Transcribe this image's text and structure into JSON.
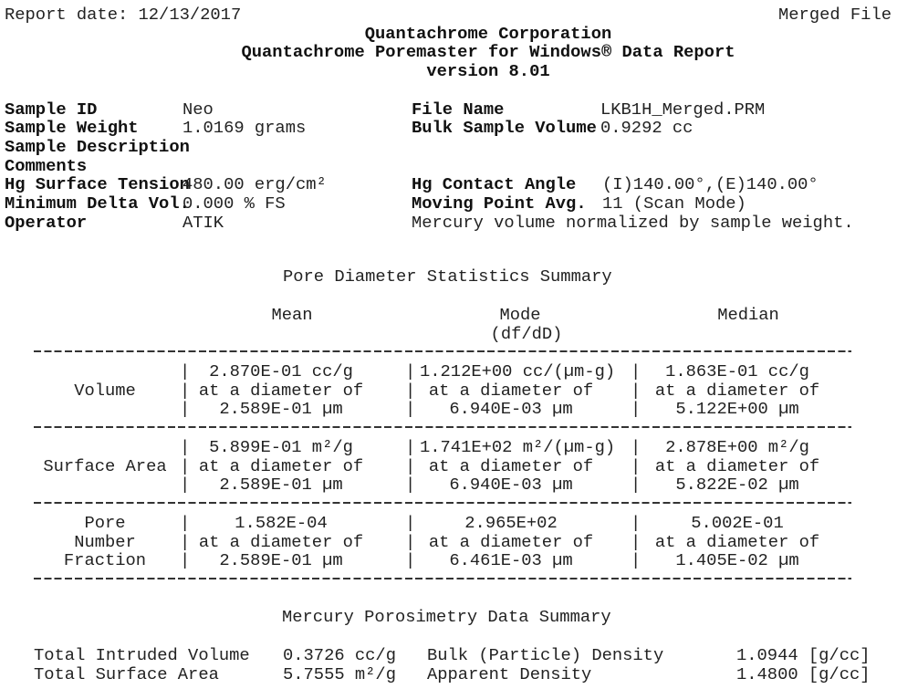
{
  "header": {
    "report_date": "Report date: 12/13/2017",
    "file_tag": "Merged File",
    "company": "Quantachrome Corporation",
    "product": "Quantachrome Poremaster for Windows® Data Report",
    "version": "version 8.01"
  },
  "sample_info": {
    "left": [
      {
        "label": "Sample ID",
        "value": "Neo"
      },
      {
        "label": "Sample Weight",
        "value": "1.0169 grams"
      },
      {
        "label": "Sample Description",
        "value": ""
      },
      {
        "label": "Comments",
        "value": ""
      },
      {
        "label": "Hg Surface Tension",
        "value": "480.00 erg/cm²"
      },
      {
        "label": "Minimum Delta Vol.",
        "value": "0.000 % FS"
      },
      {
        "label": "Operator",
        "value": "ATIK"
      }
    ],
    "right": [
      {
        "label": "File Name",
        "value": "LKB1H_Merged.PRM"
      },
      {
        "label": "Bulk Sample Volume",
        "value": "0.9292 cc"
      },
      {
        "label": "Hg Contact Angle",
        "value": "(I)140.00°,(E)140.00°"
      },
      {
        "label": "Moving Point Avg.",
        "value": "11 (Scan Mode)"
      }
    ],
    "note": "Mercury volume normalized by sample weight."
  },
  "pore_stats": {
    "title": "Pore Diameter Statistics Summary",
    "columns": [
      "Mean",
      "Mode",
      "Median"
    ],
    "mode_sub": "(df/dD)",
    "rows": [
      {
        "label": [
          "",
          "Volume",
          ""
        ],
        "mean": [
          "2.870E-01 cc/g",
          "at a diameter of",
          "2.589E-01 µm"
        ],
        "mode": [
          "1.212E+00 cc/(µm-g)",
          "at a diameter of",
          "6.940E-03 µm"
        ],
        "median": [
          "1.863E-01 cc/g",
          "at a diameter of",
          "5.122E+00 µm"
        ]
      },
      {
        "label": [
          "",
          "Surface Area",
          ""
        ],
        "mean": [
          "5.899E-01 m²/g",
          "at a diameter of",
          "2.589E-01 µm"
        ],
        "mode": [
          "1.741E+02 m²/(µm-g)",
          "at a diameter of",
          "6.940E-03 µm"
        ],
        "median": [
          "2.878E+00 m²/g",
          "at a diameter of",
          "5.822E-02 µm"
        ]
      },
      {
        "label": [
          "Pore",
          "Number",
          "Fraction"
        ],
        "mean": [
          "1.582E-04",
          "at a diameter of",
          "2.589E-01 µm"
        ],
        "mode": [
          "2.965E+02",
          "at a diameter of",
          "6.461E-03 µm"
        ],
        "median": [
          "5.002E-01",
          "at a diameter of",
          "1.405E-02 µm"
        ]
      }
    ]
  },
  "hg_summary": {
    "title": "Mercury Porosimetry Data Summary",
    "rows": [
      {
        "label": "Total Intruded Volume",
        "value": "0.3726 cc/g",
        "label2": "Bulk (Particle) Density",
        "value2": "1.0944 [g/cc]"
      },
      {
        "label": "Total Surface Area",
        "value": "5.7555 m²/g",
        "label2": "Apparent Density",
        "value2": "1.4800 [g/cc]"
      }
    ]
  }
}
